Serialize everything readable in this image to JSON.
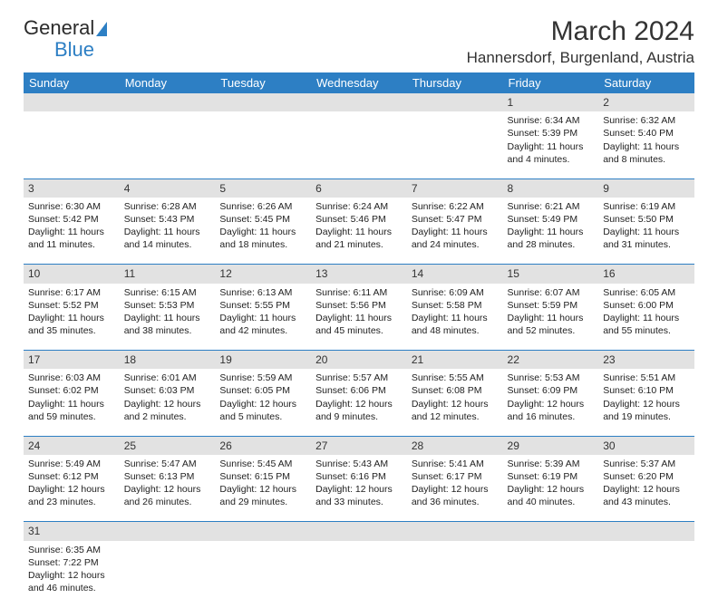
{
  "brand": {
    "part1": "General",
    "part2": "Blue"
  },
  "title": "March 2024",
  "location": "Hannersdorf, Burgenland, Austria",
  "colors": {
    "header_bg": "#2d7fc4",
    "header_text": "#ffffff",
    "daynum_bg": "#e2e2e2",
    "cell_border": "#2d7fc4",
    "text": "#222222",
    "brand_blue": "#2d7fc4"
  },
  "font": {
    "family": "Arial",
    "th_size": 13,
    "cell_size": 10.5,
    "title_size": 30,
    "location_size": 17
  },
  "dayNames": [
    "Sunday",
    "Monday",
    "Tuesday",
    "Wednesday",
    "Thursday",
    "Friday",
    "Saturday"
  ],
  "weeks": [
    {
      "nums": [
        "",
        "",
        "",
        "",
        "",
        "1",
        "2"
      ],
      "cells": [
        null,
        null,
        null,
        null,
        null,
        {
          "rise": "Sunrise: 6:34 AM",
          "set": "Sunset: 5:39 PM",
          "dl1": "Daylight: 11 hours",
          "dl2": "and 4 minutes."
        },
        {
          "rise": "Sunrise: 6:32 AM",
          "set": "Sunset: 5:40 PM",
          "dl1": "Daylight: 11 hours",
          "dl2": "and 8 minutes."
        }
      ]
    },
    {
      "nums": [
        "3",
        "4",
        "5",
        "6",
        "7",
        "8",
        "9"
      ],
      "cells": [
        {
          "rise": "Sunrise: 6:30 AM",
          "set": "Sunset: 5:42 PM",
          "dl1": "Daylight: 11 hours",
          "dl2": "and 11 minutes."
        },
        {
          "rise": "Sunrise: 6:28 AM",
          "set": "Sunset: 5:43 PM",
          "dl1": "Daylight: 11 hours",
          "dl2": "and 14 minutes."
        },
        {
          "rise": "Sunrise: 6:26 AM",
          "set": "Sunset: 5:45 PM",
          "dl1": "Daylight: 11 hours",
          "dl2": "and 18 minutes."
        },
        {
          "rise": "Sunrise: 6:24 AM",
          "set": "Sunset: 5:46 PM",
          "dl1": "Daylight: 11 hours",
          "dl2": "and 21 minutes."
        },
        {
          "rise": "Sunrise: 6:22 AM",
          "set": "Sunset: 5:47 PM",
          "dl1": "Daylight: 11 hours",
          "dl2": "and 24 minutes."
        },
        {
          "rise": "Sunrise: 6:21 AM",
          "set": "Sunset: 5:49 PM",
          "dl1": "Daylight: 11 hours",
          "dl2": "and 28 minutes."
        },
        {
          "rise": "Sunrise: 6:19 AM",
          "set": "Sunset: 5:50 PM",
          "dl1": "Daylight: 11 hours",
          "dl2": "and 31 minutes."
        }
      ]
    },
    {
      "nums": [
        "10",
        "11",
        "12",
        "13",
        "14",
        "15",
        "16"
      ],
      "cells": [
        {
          "rise": "Sunrise: 6:17 AM",
          "set": "Sunset: 5:52 PM",
          "dl1": "Daylight: 11 hours",
          "dl2": "and 35 minutes."
        },
        {
          "rise": "Sunrise: 6:15 AM",
          "set": "Sunset: 5:53 PM",
          "dl1": "Daylight: 11 hours",
          "dl2": "and 38 minutes."
        },
        {
          "rise": "Sunrise: 6:13 AM",
          "set": "Sunset: 5:55 PM",
          "dl1": "Daylight: 11 hours",
          "dl2": "and 42 minutes."
        },
        {
          "rise": "Sunrise: 6:11 AM",
          "set": "Sunset: 5:56 PM",
          "dl1": "Daylight: 11 hours",
          "dl2": "and 45 minutes."
        },
        {
          "rise": "Sunrise: 6:09 AM",
          "set": "Sunset: 5:58 PM",
          "dl1": "Daylight: 11 hours",
          "dl2": "and 48 minutes."
        },
        {
          "rise": "Sunrise: 6:07 AM",
          "set": "Sunset: 5:59 PM",
          "dl1": "Daylight: 11 hours",
          "dl2": "and 52 minutes."
        },
        {
          "rise": "Sunrise: 6:05 AM",
          "set": "Sunset: 6:00 PM",
          "dl1": "Daylight: 11 hours",
          "dl2": "and 55 minutes."
        }
      ]
    },
    {
      "nums": [
        "17",
        "18",
        "19",
        "20",
        "21",
        "22",
        "23"
      ],
      "cells": [
        {
          "rise": "Sunrise: 6:03 AM",
          "set": "Sunset: 6:02 PM",
          "dl1": "Daylight: 11 hours",
          "dl2": "and 59 minutes."
        },
        {
          "rise": "Sunrise: 6:01 AM",
          "set": "Sunset: 6:03 PM",
          "dl1": "Daylight: 12 hours",
          "dl2": "and 2 minutes."
        },
        {
          "rise": "Sunrise: 5:59 AM",
          "set": "Sunset: 6:05 PM",
          "dl1": "Daylight: 12 hours",
          "dl2": "and 5 minutes."
        },
        {
          "rise": "Sunrise: 5:57 AM",
          "set": "Sunset: 6:06 PM",
          "dl1": "Daylight: 12 hours",
          "dl2": "and 9 minutes."
        },
        {
          "rise": "Sunrise: 5:55 AM",
          "set": "Sunset: 6:08 PM",
          "dl1": "Daylight: 12 hours",
          "dl2": "and 12 minutes."
        },
        {
          "rise": "Sunrise: 5:53 AM",
          "set": "Sunset: 6:09 PM",
          "dl1": "Daylight: 12 hours",
          "dl2": "and 16 minutes."
        },
        {
          "rise": "Sunrise: 5:51 AM",
          "set": "Sunset: 6:10 PM",
          "dl1": "Daylight: 12 hours",
          "dl2": "and 19 minutes."
        }
      ]
    },
    {
      "nums": [
        "24",
        "25",
        "26",
        "27",
        "28",
        "29",
        "30"
      ],
      "cells": [
        {
          "rise": "Sunrise: 5:49 AM",
          "set": "Sunset: 6:12 PM",
          "dl1": "Daylight: 12 hours",
          "dl2": "and 23 minutes."
        },
        {
          "rise": "Sunrise: 5:47 AM",
          "set": "Sunset: 6:13 PM",
          "dl1": "Daylight: 12 hours",
          "dl2": "and 26 minutes."
        },
        {
          "rise": "Sunrise: 5:45 AM",
          "set": "Sunset: 6:15 PM",
          "dl1": "Daylight: 12 hours",
          "dl2": "and 29 minutes."
        },
        {
          "rise": "Sunrise: 5:43 AM",
          "set": "Sunset: 6:16 PM",
          "dl1": "Daylight: 12 hours",
          "dl2": "and 33 minutes."
        },
        {
          "rise": "Sunrise: 5:41 AM",
          "set": "Sunset: 6:17 PM",
          "dl1": "Daylight: 12 hours",
          "dl2": "and 36 minutes."
        },
        {
          "rise": "Sunrise: 5:39 AM",
          "set": "Sunset: 6:19 PM",
          "dl1": "Daylight: 12 hours",
          "dl2": "and 40 minutes."
        },
        {
          "rise": "Sunrise: 5:37 AM",
          "set": "Sunset: 6:20 PM",
          "dl1": "Daylight: 12 hours",
          "dl2": "and 43 minutes."
        }
      ]
    },
    {
      "nums": [
        "31",
        "",
        "",
        "",
        "",
        "",
        ""
      ],
      "cells": [
        {
          "rise": "Sunrise: 6:35 AM",
          "set": "Sunset: 7:22 PM",
          "dl1": "Daylight: 12 hours",
          "dl2": "and 46 minutes."
        },
        null,
        null,
        null,
        null,
        null,
        null
      ],
      "last": true
    }
  ]
}
